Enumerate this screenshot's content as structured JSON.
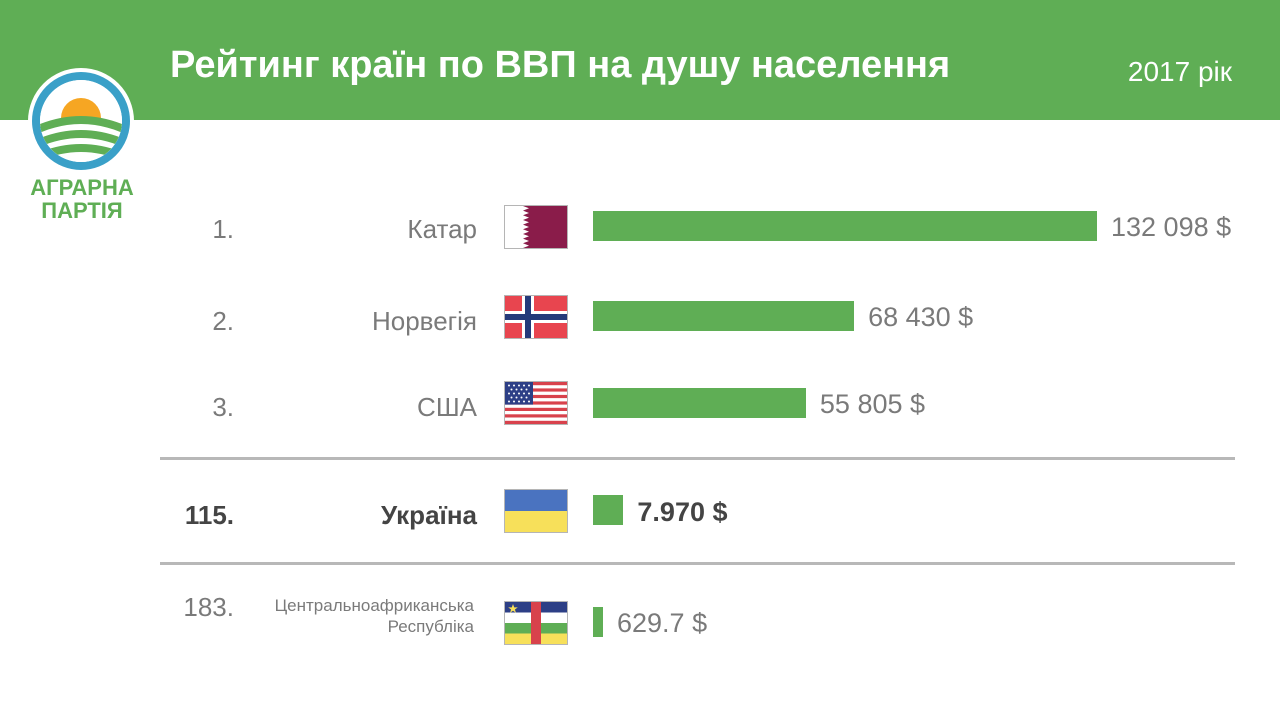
{
  "header": {
    "title": "Рейтинг країн по ВВП на душу населення",
    "year": "2017 рік"
  },
  "logo": {
    "line1": "АГРАРНА",
    "line2": "ПАРТІЯ"
  },
  "colors": {
    "header_bg": "#5fae55",
    "bar": "#5fae55",
    "text": "#7a7a7a"
  },
  "chart_data": {
    "type": "bar",
    "title": "Рейтинг країн по ВВП на душу населення",
    "categories": [
      "Катар",
      "Норвегія",
      "США",
      "Україна",
      "Центральноафриканська Республіка"
    ],
    "ranks": [
      "1.",
      "2.",
      "3.",
      "115.",
      "183."
    ],
    "values": [
      132098,
      68430,
      55805,
      7970,
      629.7
    ],
    "value_labels": [
      "132 098 $",
      "68 430 $",
      "55 805 $",
      "7.970 $",
      "629.7 $"
    ],
    "unit": "$",
    "orientation": "horizontal"
  }
}
